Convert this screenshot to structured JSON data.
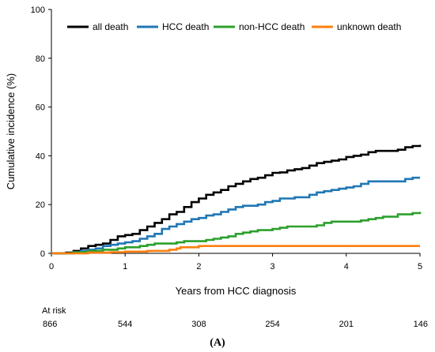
{
  "chart_data": {
    "type": "line",
    "title": "",
    "xlabel": "Years from HCC diagnosis",
    "ylabel": "Cumulative incidence (%)",
    "xlim": [
      0,
      5
    ],
    "ylim": [
      0,
      100
    ],
    "x_ticks": [
      0,
      1,
      2,
      3,
      4,
      5
    ],
    "y_ticks": [
      0,
      20,
      40,
      60,
      80,
      100
    ],
    "grid": false,
    "legend_position": "top",
    "series": [
      {
        "name": "all death",
        "color": "#000000",
        "points": [
          [
            0,
            0
          ],
          [
            0.2,
            0.3
          ],
          [
            0.3,
            1
          ],
          [
            0.4,
            2
          ],
          [
            0.5,
            3
          ],
          [
            0.6,
            3.5
          ],
          [
            0.7,
            4
          ],
          [
            0.8,
            5.5
          ],
          [
            0.9,
            7
          ],
          [
            1.0,
            7.5
          ],
          [
            1.1,
            8
          ],
          [
            1.2,
            9.5
          ],
          [
            1.3,
            11
          ],
          [
            1.4,
            12.5
          ],
          [
            1.5,
            14
          ],
          [
            1.6,
            16
          ],
          [
            1.7,
            17
          ],
          [
            1.8,
            19
          ],
          [
            1.9,
            21
          ],
          [
            2.0,
            22.5
          ],
          [
            2.1,
            24
          ],
          [
            2.2,
            25
          ],
          [
            2.3,
            26
          ],
          [
            2.4,
            27.5
          ],
          [
            2.5,
            28.5
          ],
          [
            2.6,
            29.5
          ],
          [
            2.7,
            30.5
          ],
          [
            2.8,
            31
          ],
          [
            2.9,
            32
          ],
          [
            3.0,
            33
          ],
          [
            3.1,
            33.2
          ],
          [
            3.2,
            34
          ],
          [
            3.3,
            34.5
          ],
          [
            3.4,
            35
          ],
          [
            3.5,
            36
          ],
          [
            3.6,
            37
          ],
          [
            3.7,
            37.5
          ],
          [
            3.8,
            38
          ],
          [
            3.9,
            38.5
          ],
          [
            4.0,
            39.5
          ],
          [
            4.1,
            40
          ],
          [
            4.2,
            40.5
          ],
          [
            4.3,
            41.5
          ],
          [
            4.4,
            42
          ],
          [
            4.5,
            42
          ],
          [
            4.6,
            42
          ],
          [
            4.7,
            42.5
          ],
          [
            4.8,
            43.5
          ],
          [
            4.9,
            44
          ],
          [
            5.0,
            44.5
          ]
        ]
      },
      {
        "name": "HCC death",
        "color": "#1f77b4",
        "points": [
          [
            0,
            0
          ],
          [
            0.3,
            0.5
          ],
          [
            0.4,
            1
          ],
          [
            0.5,
            1.5
          ],
          [
            0.6,
            2
          ],
          [
            0.7,
            3
          ],
          [
            0.8,
            3.5
          ],
          [
            0.9,
            4
          ],
          [
            1.0,
            4.5
          ],
          [
            1.1,
            5
          ],
          [
            1.2,
            6
          ],
          [
            1.3,
            7
          ],
          [
            1.4,
            8
          ],
          [
            1.5,
            10
          ],
          [
            1.6,
            11
          ],
          [
            1.7,
            12
          ],
          [
            1.8,
            13
          ],
          [
            1.9,
            14
          ],
          [
            2.0,
            14.5
          ],
          [
            2.1,
            15.5
          ],
          [
            2.2,
            16
          ],
          [
            2.3,
            17
          ],
          [
            2.4,
            18
          ],
          [
            2.5,
            19
          ],
          [
            2.6,
            19.5
          ],
          [
            2.7,
            19.5
          ],
          [
            2.8,
            20
          ],
          [
            2.9,
            21
          ],
          [
            3.0,
            21.5
          ],
          [
            3.1,
            22.5
          ],
          [
            3.2,
            22.5
          ],
          [
            3.3,
            23
          ],
          [
            3.4,
            23
          ],
          [
            3.5,
            24
          ],
          [
            3.6,
            25
          ],
          [
            3.7,
            25.5
          ],
          [
            3.8,
            26
          ],
          [
            3.9,
            26.5
          ],
          [
            4.0,
            27
          ],
          [
            4.1,
            27.5
          ],
          [
            4.2,
            28.5
          ],
          [
            4.3,
            29.5
          ],
          [
            4.4,
            29.5
          ],
          [
            4.5,
            29.5
          ],
          [
            4.6,
            29.5
          ],
          [
            4.7,
            29.5
          ],
          [
            4.8,
            30.5
          ],
          [
            4.9,
            31
          ],
          [
            5.0,
            31
          ]
        ]
      },
      {
        "name": "non-HCC death",
        "color": "#2ca02c",
        "points": [
          [
            0,
            0
          ],
          [
            0.3,
            0.5
          ],
          [
            0.5,
            1
          ],
          [
            0.7,
            1.5
          ],
          [
            0.9,
            2
          ],
          [
            1.0,
            2.5
          ],
          [
            1.1,
            2.5
          ],
          [
            1.2,
            3
          ],
          [
            1.3,
            3.5
          ],
          [
            1.4,
            4
          ],
          [
            1.5,
            4
          ],
          [
            1.6,
            4
          ],
          [
            1.7,
            4.5
          ],
          [
            1.8,
            5
          ],
          [
            1.9,
            5
          ],
          [
            2.0,
            5
          ],
          [
            2.1,
            5.5
          ],
          [
            2.2,
            6
          ],
          [
            2.3,
            6.5
          ],
          [
            2.4,
            7
          ],
          [
            2.5,
            8
          ],
          [
            2.6,
            8.5
          ],
          [
            2.7,
            9
          ],
          [
            2.8,
            9.5
          ],
          [
            2.9,
            9.5
          ],
          [
            3.0,
            10
          ],
          [
            3.1,
            10.5
          ],
          [
            3.2,
            11
          ],
          [
            3.3,
            11
          ],
          [
            3.4,
            11
          ],
          [
            3.5,
            11
          ],
          [
            3.6,
            11.5
          ],
          [
            3.7,
            12.5
          ],
          [
            3.8,
            13
          ],
          [
            3.9,
            13
          ],
          [
            4.0,
            13
          ],
          [
            4.1,
            13
          ],
          [
            4.2,
            13.5
          ],
          [
            4.3,
            14
          ],
          [
            4.4,
            14.5
          ],
          [
            4.5,
            15
          ],
          [
            4.6,
            15
          ],
          [
            4.7,
            16
          ],
          [
            4.8,
            16
          ],
          [
            4.9,
            16.5
          ],
          [
            5.0,
            17
          ]
        ]
      },
      {
        "name": "unknown death",
        "color": "#ff7f0e",
        "points": [
          [
            0,
            0
          ],
          [
            0.5,
            0.3
          ],
          [
            0.8,
            0.5
          ],
          [
            1.0,
            0.7
          ],
          [
            1.3,
            1
          ],
          [
            1.6,
            1.5
          ],
          [
            1.7,
            2
          ],
          [
            1.75,
            2.5
          ],
          [
            2.0,
            3
          ],
          [
            5.0,
            3
          ]
        ]
      }
    ],
    "at_risk": {
      "label": "At risk",
      "values": [
        "866",
        "544",
        "308",
        "254",
        "201",
        "146"
      ]
    },
    "panel_label": "(A)"
  }
}
